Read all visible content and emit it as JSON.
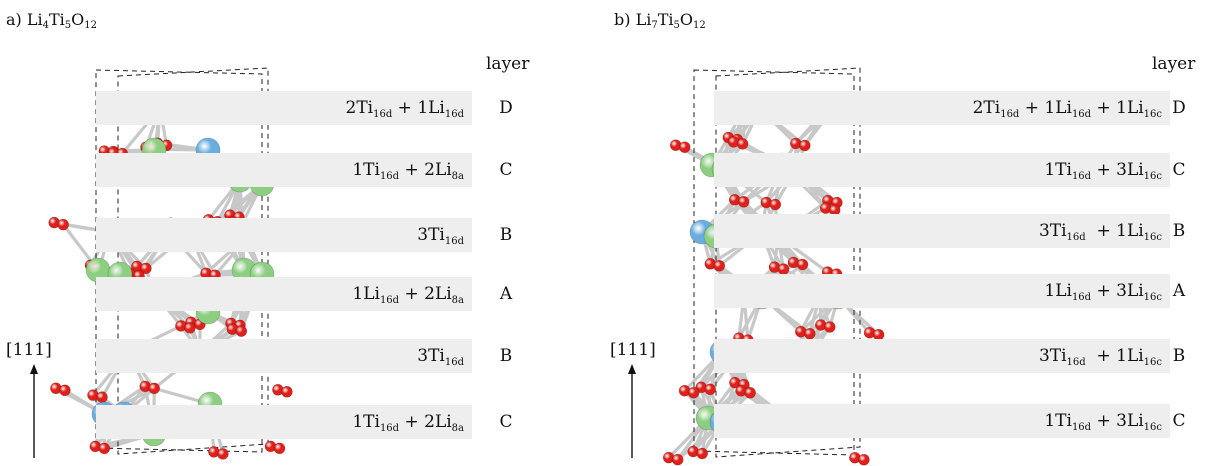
{
  "colors": {
    "oxygen": "#e0201a",
    "titanium": "#6aaee0",
    "lithium": "#8ccf80",
    "band": "#eeeeee",
    "bond": "#c8c8c8"
  },
  "panels": [
    {
      "id": "a",
      "label": "a)",
      "formula": [
        {
          "text": "Li"
        },
        {
          "sub": "4"
        },
        {
          "text": "Ti"
        },
        {
          "sub": "5"
        },
        {
          "text": "O"
        },
        {
          "sub": "12"
        }
      ],
      "header": "layer",
      "direction": "[111]",
      "layers": [
        {
          "letter": "D",
          "composition": [
            {
              "text": "2Ti"
            },
            {
              "sub": "16d"
            },
            {
              "text": " + 1Li"
            },
            {
              "sub": "16d"
            }
          ]
        },
        {
          "letter": "C",
          "composition": [
            {
              "text": "1Ti"
            },
            {
              "sub": "16d"
            },
            {
              "text": " + 2Li"
            },
            {
              "sub": "8a"
            }
          ]
        },
        {
          "letter": "B",
          "composition": [
            {
              "text": "3Ti"
            },
            {
              "sub": "16d"
            }
          ]
        },
        {
          "letter": "A",
          "composition": [
            {
              "text": "1Li"
            },
            {
              "sub": "16d"
            },
            {
              "text": " + 2Li"
            },
            {
              "sub": "8a"
            }
          ]
        },
        {
          "letter": "B",
          "composition": [
            {
              "text": "3Ti"
            },
            {
              "sub": "16d"
            }
          ]
        },
        {
          "letter": "C",
          "composition": [
            {
              "text": "1Ti"
            },
            {
              "sub": "16d"
            },
            {
              "text": " + 2Li"
            },
            {
              "sub": "8a"
            }
          ]
        }
      ]
    },
    {
      "id": "b",
      "label": "b)",
      "formula": [
        {
          "text": "Li"
        },
        {
          "sub": "7"
        },
        {
          "text": "Ti"
        },
        {
          "sub": "5"
        },
        {
          "text": "O"
        },
        {
          "sub": "12"
        }
      ],
      "header": "layer",
      "direction": "[111]",
      "layers": [
        {
          "letter": "D",
          "composition": [
            {
              "text": "2Ti"
            },
            {
              "sub": "16d"
            },
            {
              "text": " + 1Li"
            },
            {
              "sub": "16d"
            },
            {
              "text": " + 1Li"
            },
            {
              "sub": "16c"
            }
          ]
        },
        {
          "letter": "C",
          "composition": [
            {
              "text": "1Ti"
            },
            {
              "sub": "16d"
            },
            {
              "text": " + 3Li"
            },
            {
              "sub": "16c"
            }
          ]
        },
        {
          "letter": "B",
          "composition": [
            {
              "text": "3Ti"
            },
            {
              "sub": "16d"
            },
            {
              "text": "  + 1Li"
            },
            {
              "sub": "16c"
            }
          ]
        },
        {
          "letter": "A",
          "composition": [
            {
              "text": "1Li"
            },
            {
              "sub": "16d"
            },
            {
              "text": " + 3Li"
            },
            {
              "sub": "16c"
            }
          ]
        },
        {
          "letter": "B",
          "composition": [
            {
              "text": "3Ti"
            },
            {
              "sub": "16d"
            },
            {
              "text": "  + 1Li"
            },
            {
              "sub": "16c"
            }
          ]
        },
        {
          "letter": "C",
          "composition": [
            {
              "text": "1Ti"
            },
            {
              "sub": "16d"
            },
            {
              "text": " + 3Li"
            },
            {
              "sub": "16c"
            }
          ]
        }
      ]
    }
  ]
}
